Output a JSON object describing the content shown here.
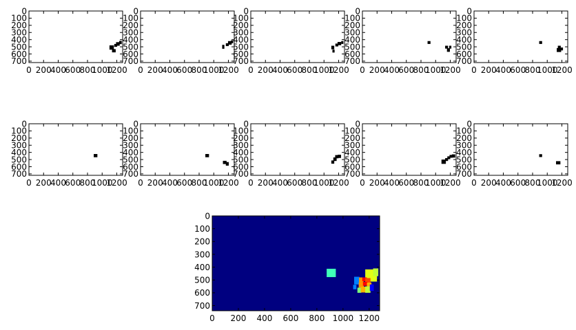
{
  "figure": {
    "background": "#ffffff",
    "axis_color": "#000000",
    "mark_color": "#000000",
    "heatmap_background": "#000080"
  },
  "chart_data": [
    {
      "type": "scatter",
      "panel": "binary-frame-1",
      "xlim": [
        0,
        1280
      ],
      "ylim": [
        720,
        0
      ],
      "xticks": [
        "0",
        "200",
        "400",
        "600",
        "800",
        "1000",
        "1200"
      ],
      "yticks": [
        "0",
        "100",
        "200",
        "300",
        "400",
        "500",
        "600",
        "700"
      ],
      "blobs": [
        {
          "x": 1130,
          "y": 510,
          "w": 60,
          "h": 60
        },
        {
          "x": 1160,
          "y": 555,
          "w": 50,
          "h": 45
        },
        {
          "x": 1185,
          "y": 480,
          "w": 40,
          "h": 40
        },
        {
          "x": 1215,
          "y": 460,
          "w": 50,
          "h": 50
        },
        {
          "x": 1250,
          "y": 440,
          "w": 35,
          "h": 45
        }
      ]
    },
    {
      "type": "scatter",
      "panel": "binary-frame-2",
      "xlim": [
        0,
        1280
      ],
      "ylim": [
        720,
        0
      ],
      "xticks": [
        "0",
        "200",
        "400",
        "600",
        "800",
        "1000",
        "1200"
      ],
      "yticks": [
        "0",
        "100",
        "200",
        "300",
        "400",
        "500",
        "600",
        "700"
      ],
      "blobs": [
        {
          "x": 1130,
          "y": 500,
          "w": 30,
          "h": 55
        },
        {
          "x": 1185,
          "y": 470,
          "w": 40,
          "h": 40
        },
        {
          "x": 1220,
          "y": 445,
          "w": 50,
          "h": 50
        },
        {
          "x": 1250,
          "y": 430,
          "w": 30,
          "h": 40
        }
      ]
    },
    {
      "type": "scatter",
      "panel": "binary-frame-3",
      "xlim": [
        0,
        1280
      ],
      "ylim": [
        720,
        0
      ],
      "xticks": [
        "0",
        "200",
        "400",
        "600",
        "800",
        "1000",
        "1200"
      ],
      "yticks": [
        "0",
        "100",
        "200",
        "300",
        "400",
        "500",
        "600",
        "700"
      ],
      "blobs": [
        {
          "x": 1120,
          "y": 510,
          "w": 40,
          "h": 50
        },
        {
          "x": 1130,
          "y": 560,
          "w": 30,
          "h": 40
        },
        {
          "x": 1175,
          "y": 475,
          "w": 40,
          "h": 40
        },
        {
          "x": 1210,
          "y": 455,
          "w": 50,
          "h": 45
        },
        {
          "x": 1250,
          "y": 440,
          "w": 30,
          "h": 40
        }
      ]
    },
    {
      "type": "scatter",
      "panel": "binary-frame-4",
      "xlim": [
        0,
        1280
      ],
      "ylim": [
        720,
        0
      ],
      "xticks": [
        "0",
        "200",
        "400",
        "600",
        "800",
        "1000",
        "1200"
      ],
      "yticks": [
        "0",
        "100",
        "200",
        "300",
        "400",
        "500",
        "600",
        "700"
      ],
      "blobs": [
        {
          "x": 910,
          "y": 440,
          "w": 40,
          "h": 40
        },
        {
          "x": 1150,
          "y": 505,
          "w": 40,
          "h": 40
        },
        {
          "x": 1175,
          "y": 545,
          "w": 40,
          "h": 50
        },
        {
          "x": 1200,
          "y": 505,
          "w": 30,
          "h": 40
        }
      ]
    },
    {
      "type": "scatter",
      "panel": "binary-frame-5",
      "xlim": [
        0,
        1280
      ],
      "ylim": [
        720,
        0
      ],
      "xticks": [
        "0",
        "200",
        "400",
        "600",
        "800",
        "1000",
        "1200"
      ],
      "yticks": [
        "0",
        "100",
        "200",
        "300",
        "400",
        "500",
        "600",
        "700"
      ],
      "blobs": [
        {
          "x": 910,
          "y": 440,
          "w": 40,
          "h": 40
        },
        {
          "x": 1165,
          "y": 505,
          "w": 40,
          "h": 40
        },
        {
          "x": 1160,
          "y": 545,
          "w": 60,
          "h": 55
        },
        {
          "x": 1200,
          "y": 530,
          "w": 30,
          "h": 40
        }
      ]
    },
    {
      "type": "scatter",
      "panel": "binary-frame-6",
      "xlim": [
        0,
        1280
      ],
      "ylim": [
        720,
        0
      ],
      "xticks": [
        "0",
        "200",
        "400",
        "600",
        "800",
        "1000",
        "1200"
      ],
      "yticks": [
        "0",
        "100",
        "200",
        "300",
        "400",
        "500",
        "600",
        "700"
      ],
      "blobs": [
        {
          "x": 910,
          "y": 445,
          "w": 50,
          "h": 45
        }
      ]
    },
    {
      "type": "scatter",
      "panel": "binary-frame-7",
      "xlim": [
        0,
        1280
      ],
      "ylim": [
        720,
        0
      ],
      "xticks": [
        "0",
        "200",
        "400",
        "600",
        "800",
        "1000",
        "1200"
      ],
      "yticks": [
        "0",
        "100",
        "200",
        "300",
        "400",
        "500",
        "600",
        "700"
      ],
      "blobs": [
        {
          "x": 910,
          "y": 445,
          "w": 50,
          "h": 45
        },
        {
          "x": 1150,
          "y": 540,
          "w": 50,
          "h": 45
        },
        {
          "x": 1185,
          "y": 560,
          "w": 40,
          "h": 50
        }
      ]
    },
    {
      "type": "scatter",
      "panel": "binary-frame-8",
      "xlim": [
        0,
        1280
      ],
      "ylim": [
        720,
        0
      ],
      "xticks": [
        "0",
        "200",
        "400",
        "600",
        "800",
        "1000",
        "1200"
      ],
      "yticks": [
        "0",
        "100",
        "200",
        "300",
        "400",
        "500",
        "600",
        "700"
      ],
      "blobs": [
        {
          "x": 1120,
          "y": 535,
          "w": 40,
          "h": 45
        },
        {
          "x": 1150,
          "y": 495,
          "w": 45,
          "h": 50
        },
        {
          "x": 1175,
          "y": 460,
          "w": 45,
          "h": 45
        },
        {
          "x": 1210,
          "y": 455,
          "w": 45,
          "h": 45
        }
      ]
    },
    {
      "type": "scatter",
      "panel": "binary-frame-9",
      "xlim": [
        0,
        1280
      ],
      "ylim": [
        720,
        0
      ],
      "xticks": [
        "0",
        "200",
        "400",
        "600",
        "800",
        "1000",
        "1200"
      ],
      "yticks": [
        "0",
        "100",
        "200",
        "300",
        "400",
        "500",
        "600",
        "700"
      ],
      "blobs": [
        {
          "x": 1110,
          "y": 530,
          "w": 60,
          "h": 60
        },
        {
          "x": 1150,
          "y": 500,
          "w": 40,
          "h": 40
        },
        {
          "x": 1180,
          "y": 475,
          "w": 40,
          "h": 40
        },
        {
          "x": 1210,
          "y": 455,
          "w": 40,
          "h": 40
        },
        {
          "x": 1245,
          "y": 450,
          "w": 45,
          "h": 45
        }
      ]
    },
    {
      "type": "scatter",
      "panel": "binary-frame-10",
      "xlim": [
        0,
        1280
      ],
      "ylim": [
        720,
        0
      ],
      "xticks": [
        "0",
        "200",
        "400",
        "600",
        "800",
        "1000",
        "1200"
      ],
      "yticks": [
        "0",
        "100",
        "200",
        "300",
        "400",
        "500",
        "600",
        "700"
      ],
      "blobs": [
        {
          "x": 910,
          "y": 445,
          "w": 40,
          "h": 40
        },
        {
          "x": 1150,
          "y": 545,
          "w": 60,
          "h": 45
        }
      ]
    },
    {
      "type": "heatmap",
      "panel": "heatmap-sum",
      "xlim": [
        0,
        1280
      ],
      "ylim": [
        740,
        0
      ],
      "xticks": [
        "0",
        "200",
        "400",
        "600",
        "800",
        "1000",
        "1200"
      ],
      "yticks": [
        "0",
        "100",
        "200",
        "300",
        "400",
        "500",
        "600",
        "700"
      ],
      "background_value": 0,
      "cells": [
        {
          "x": 910,
          "y": 445,
          "w": 70,
          "h": 65,
          "color": "#40ffb8"
        },
        {
          "x": 1215,
          "y": 465,
          "w": 90,
          "h": 95,
          "color": "#e2ff15"
        },
        {
          "x": 1250,
          "y": 440,
          "w": 40,
          "h": 60,
          "color": "#c0ff36"
        },
        {
          "x": 1105,
          "y": 505,
          "w": 40,
          "h": 60,
          "color": "#0080ff"
        },
        {
          "x": 1140,
          "y": 500,
          "w": 35,
          "h": 40,
          "color": "#ff9400"
        },
        {
          "x": 1165,
          "y": 495,
          "w": 35,
          "h": 30,
          "color": "#ff0000"
        },
        {
          "x": 1190,
          "y": 505,
          "w": 40,
          "h": 40,
          "color": "#ff4800"
        },
        {
          "x": 1140,
          "y": 540,
          "w": 40,
          "h": 40,
          "color": "#ff9400"
        },
        {
          "x": 1170,
          "y": 530,
          "w": 35,
          "h": 30,
          "color": "#ff0000"
        },
        {
          "x": 1200,
          "y": 540,
          "w": 35,
          "h": 40,
          "color": "#ffb000"
        },
        {
          "x": 1125,
          "y": 580,
          "w": 30,
          "h": 40,
          "color": "#7dff7a"
        },
        {
          "x": 1155,
          "y": 575,
          "w": 40,
          "h": 45,
          "color": "#ffb000"
        },
        {
          "x": 1190,
          "y": 575,
          "w": 40,
          "h": 50,
          "color": "#c1ff36"
        },
        {
          "x": 1220,
          "y": 560,
          "w": 30,
          "h": 50,
          "color": "#0000ff"
        },
        {
          "x": 1090,
          "y": 555,
          "w": 25,
          "h": 35,
          "color": "#0080ff"
        }
      ]
    }
  ]
}
